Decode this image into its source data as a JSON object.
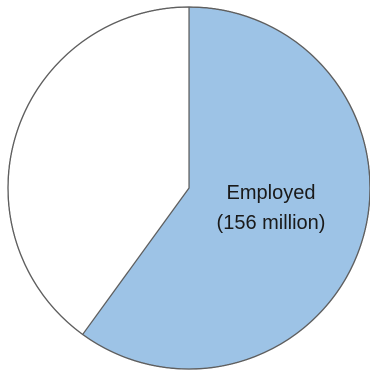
{
  "chart_data": {
    "type": "pie",
    "title": "",
    "slices": [
      {
        "label": "Employed",
        "value_text": "(156 million)",
        "value": 156,
        "unit": "million",
        "color": "#9dc3e6"
      },
      {
        "label": "",
        "value_text": "",
        "value": 104,
        "unit": "million",
        "color": "#ffffff"
      }
    ],
    "start_angle_deg": 0,
    "direction": "clockwise",
    "outline_color": "#5f5f5f"
  }
}
